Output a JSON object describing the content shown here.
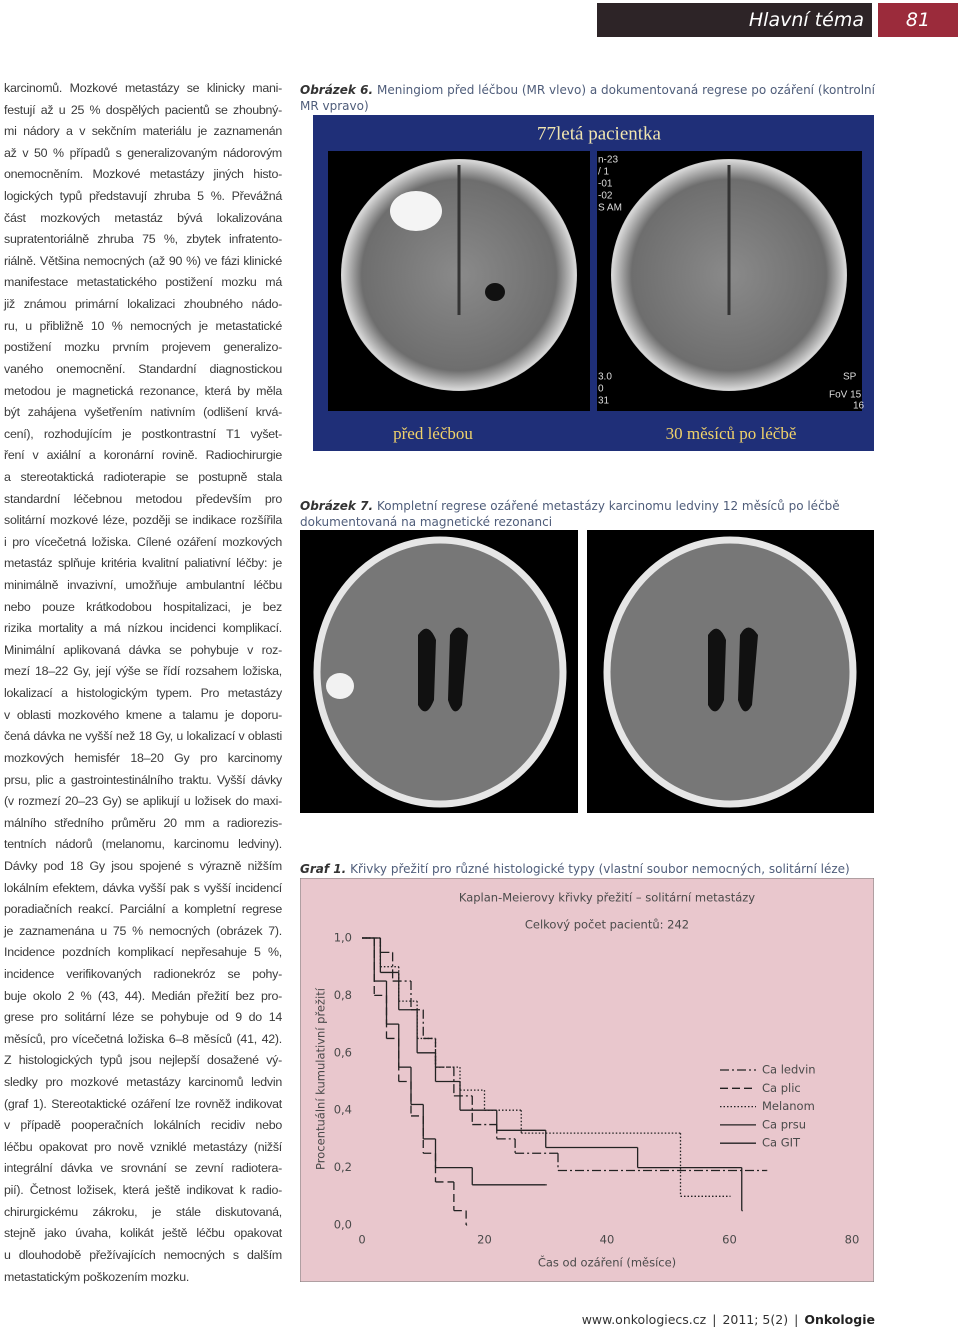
{
  "header": {
    "section": "Hlavní téma",
    "page": "81"
  },
  "body_lines": [
    "karcinomů. Mozkové metastázy se klinicky mani-",
    "festují až u 25 % dospělých pacientů se zhoubný-",
    "mi nádory a v sekčním materiálu je zaznamenán",
    "až v 50 % případů s generalizovaným nádorovým",
    "onemocněním. Mozkové metastázy jiných histo-",
    "logických typů představují zhruba 5 %. Převážná",
    "část mozkových metastáz bývá lokalizována",
    "supratentoriálně zhruba 75 %, zbytek infratento-",
    "riálně. Většina nemocných (až 90 %) ve fázi klinické",
    "manifestace metastatického postižení mozku má",
    "již známou primární lokalizaci zhoubného nádo-",
    "ru, u přibližně 10 % nemocných je metastatické",
    "postižení mozku prvním projevem generalizo-",
    "vaného onemocnění. Standardní diagnostickou",
    "metodou je magnetická rezonance, která by měla",
    "být zahájena vyšetřením nativním (odlišení krvá-",
    "cení), rozhodujícím je postkontrastní T1 vyšet-",
    "ření v axiální a koronární rovině. Radiochirurgie",
    "a stereotaktická radioterapie se postupně stala",
    "standardní léčebnou metodou především pro",
    "solitární mozkové léze, později se indikace rozšířila",
    "i pro vícečetná ložiska. Cílené ozáření mozkových",
    "metastáz splňuje kritéria kvalitní paliativní léčby: je",
    "minimálně invazivní, umožňuje ambulantní léčbu",
    "nebo pouze krátkodobou hospitalizaci, je bez",
    "rizika mortality a má nízkou incidenci komplikací.",
    "Minimální aplikovaná dávka se pohybuje v roz-",
    "mezí 18–22 Gy, její výše se řídí rozsahem ložiska,",
    "lokalizací a histologickým typem. Pro metastázy",
    "v oblasti mozkového kmene a talamu je doporu-",
    "čená dávka ne vyšší než 18 Gy, u lokalizací v oblasti",
    "mozkových hemisfér 18–20 Gy pro karcinomy",
    "prsu, plic a gastrointestinálního traktu. Vyšší dávky",
    "(v rozmezí 20–23 Gy) se aplikují u ložisek do maxi-",
    "málního středního průměru 20 mm a radiorezis-",
    "tentních nádorů (melanomu, karcinomu ledviny).",
    "Dávky pod 18 Gy jsou spojené s výrazně nižším",
    "lokálním efektem, dávka vyšší pak s vyšší incidencí",
    "poradiačních reakcí. Parciální a kompletní regrese",
    "je zaznamenána u 75 % nemocných (obrázek 7).",
    "Incidence pozdních komplikací nepřesahuje 5 %,",
    "incidence verifikovaných radionekróz se pohy-",
    "buje okolo 2 % (43, 44). Medián přežití bez pro-",
    "grese pro solitární léze se pohybuje od 9 do 14",
    "měsíců, pro vícečetná ložiska 6–8 měsíců (41, 42).",
    "Z histologických typů jsou nejlepší dosažené vý-",
    "sledky pro mozkové metastázy karcinomů ledvin",
    "(graf 1). Stereotaktické ozáření lze rovněž indikovat",
    "v případě pooperačních lokálních recidiv nebo",
    "léčbu opakovat pro nově vzniklé metastázy (nižší",
    "integrální dávka ve srovnání se zevní radiotera-",
    "pií). Četnost ložisek, která ještě indikovat k radio-",
    "chirurgickému zákroku, je stále diskutovaná,",
    "stejně jako úvaha, kolikát ještě léčbu opakovat",
    "u dlouhodobě přežívajících nemocných s dalším",
    "metastatickým poškozením mozku."
  ],
  "figure_6": {
    "label": "Obrázek 6.",
    "caption": "Meningiom před léčbou (MR vlevo) a dokumentovaná regrese po ozáření (kontrolní MR vpravo)",
    "image_title": "77letá pacientka",
    "panel_labels": [
      "před léčbou",
      "30 měsíců po léčbě"
    ],
    "scanner_labels": [
      "n-23",
      "/ 1",
      "-01",
      "-02",
      "S AM",
      "3.0",
      "0",
      "31",
      "SP",
      "FoV 15",
      "16"
    ]
  },
  "figure_7": {
    "label": "Obrázek 7.",
    "caption": "Kompletní regrese ozářené metastázy karcinomu ledviny 12 měsíců po léčbě dokumentovaná na magnetické rezonanci"
  },
  "graph_caption": {
    "label": "Graf 1.",
    "text": "Křivky přežití pro různé histologické typy (vlastní soubor nemocných, solitární léze)"
  },
  "chart_data": {
    "type": "step",
    "title": "Kaplan-Meierovy křivky přežití – solitární metastázy",
    "subtitle": "Celkový počet pacientů: 242",
    "x_label": "Čas od ozáření (měsíce)",
    "y_label": "Procentuální kumulativní přežití",
    "xlim": [
      0,
      80
    ],
    "ylim": [
      0,
      1
    ],
    "xticks": [
      0,
      20,
      40,
      60,
      80
    ],
    "yticks": [
      {
        "value": 0,
        "label": "0,0"
      },
      {
        "value": 0.2,
        "label": "0,2"
      },
      {
        "value": 0.4,
        "label": "0,4"
      },
      {
        "value": 0.6,
        "label": "0,6"
      },
      {
        "value": 0.8,
        "label": "0,8"
      },
      {
        "value": 1,
        "label": "1,0"
      }
    ],
    "legend": "right",
    "background": "#e9c7cd",
    "series": [
      {
        "name": "Ca ledvin",
        "color": "#222222",
        "style": "dash-dot",
        "x": [
          0,
          3,
          5,
          8,
          10,
          12,
          15,
          18,
          22,
          25,
          32,
          66
        ],
        "values": [
          1,
          0.95,
          0.85,
          0.75,
          0.65,
          0.55,
          0.45,
          0.35,
          0.3,
          0.25,
          0.19,
          0.19
        ]
      },
      {
        "name": "Ca plic",
        "color": "#222222",
        "style": "dashed",
        "x": [
          0,
          2,
          4,
          6,
          8,
          10,
          12,
          15,
          17
        ],
        "values": [
          1,
          0.8,
          0.65,
          0.5,
          0.38,
          0.25,
          0.15,
          0.05,
          0
        ]
      },
      {
        "name": "Melanom",
        "color": "#222222",
        "style": "dotted",
        "x": [
          0,
          3,
          6,
          9,
          12,
          16,
          20,
          26,
          52,
          60
        ],
        "values": [
          1,
          0.9,
          0.78,
          0.65,
          0.55,
          0.47,
          0.4,
          0.32,
          0.1,
          0.1
        ]
      },
      {
        "name": "Ca prsu",
        "color": "#222222",
        "style": "solid",
        "x": [
          0,
          3,
          6,
          9,
          12,
          16,
          22,
          30,
          45,
          62
        ],
        "values": [
          1,
          0.88,
          0.75,
          0.6,
          0.5,
          0.4,
          0.33,
          0.27,
          0.2,
          0.05
        ]
      },
      {
        "name": "Ca GIT",
        "color": "#222222",
        "style": "solid",
        "x": [
          0,
          2,
          4,
          6,
          8,
          10,
          12,
          18,
          30
        ],
        "values": [
          1,
          0.85,
          0.7,
          0.55,
          0.42,
          0.3,
          0.2,
          0.14,
          0.14
        ]
      }
    ]
  },
  "footer": {
    "url": "www.onkologiecs.cz",
    "issue": "2011; 5(2)",
    "journal": "Onkologie"
  }
}
